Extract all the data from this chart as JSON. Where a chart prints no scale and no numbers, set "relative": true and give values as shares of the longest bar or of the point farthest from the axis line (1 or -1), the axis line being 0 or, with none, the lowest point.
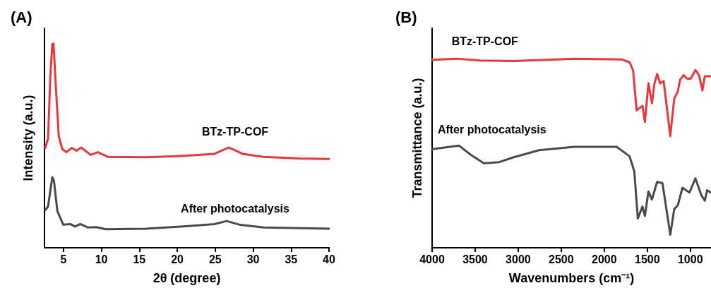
{
  "chart_data": [
    {
      "type": "line",
      "title": "(A)",
      "xlabel": "2θ (degree)",
      "ylabel": "Intensity (a.u.)",
      "relative": true,
      "xlim": [
        2.5,
        40
      ],
      "xticks": [
        5,
        10,
        15,
        20,
        25,
        30,
        35,
        40
      ],
      "grid": false,
      "legend": false,
      "marker": "none",
      "line_style": "solid",
      "tick_labels": "x",
      "series": [
        {
          "name": "BTz-TP-COF",
          "color": "#e8383d",
          "x": [
            2.6,
            2.97,
            3.28,
            3.53,
            3.69,
            4.0,
            4.38,
            4.85,
            5.38,
            6.1,
            6.72,
            7.34,
            8.58,
            9.52,
            10.92,
            15.9,
            20.5,
            24.9,
            26.8,
            28.6,
            31.4,
            36.1,
            40.0
          ],
          "values": [
            0.489,
            0.535,
            0.845,
            0.997,
            1.0,
            0.788,
            0.547,
            0.483,
            0.468,
            0.489,
            0.475,
            0.491,
            0.455,
            0.468,
            0.445,
            0.443,
            0.449,
            0.46,
            0.491,
            0.46,
            0.445,
            0.437,
            0.435
          ]
        },
        {
          "name": "After photocatalysis",
          "color": "#4a4a4a",
          "x": [
            2.6,
            2.97,
            3.53,
            3.75,
            4.2,
            4.98,
            5.91,
            6.53,
            7.22,
            8.24,
            9.33,
            10.57,
            15.86,
            20.5,
            24.9,
            26.5,
            28.3,
            31.4,
            40.0
          ],
          "values": [
            0.185,
            0.202,
            0.346,
            0.328,
            0.179,
            0.113,
            0.116,
            0.104,
            0.116,
            0.099,
            0.101,
            0.091,
            0.093,
            0.104,
            0.116,
            0.131,
            0.112,
            0.099,
            0.093
          ]
        }
      ]
    },
    {
      "type": "line",
      "title": "(B)",
      "xlabel": "Wavenumbers (cm⁻¹)",
      "ylabel": "Transmittance (a.u.)",
      "relative": true,
      "xlim": [
        4000,
        760
      ],
      "xticks": [
        4000,
        3500,
        3000,
        2500,
        2000,
        1500,
        1000
      ],
      "grid": false,
      "legend": false,
      "marker": "none",
      "line_style": "solid",
      "tick_labels": "x",
      "series": [
        {
          "name": "BTz-TP-COF",
          "color": "#e8383d",
          "x": [
            3995,
            3713,
            3440,
            3058,
            2348,
            1801,
            1706,
            1665,
            1624,
            1556,
            1528,
            1487,
            1446,
            1419,
            1386,
            1351,
            1310,
            1233,
            1187,
            1146,
            1119,
            1078,
            1037,
            996,
            941,
            900,
            859,
            832,
            764
          ],
          "values": [
            0.994,
            1.0,
            0.99,
            0.987,
            1.0,
            0.996,
            0.981,
            0.938,
            0.727,
            0.751,
            0.665,
            0.87,
            0.764,
            0.863,
            0.919,
            0.87,
            0.882,
            0.59,
            0.789,
            0.826,
            0.888,
            0.913,
            0.894,
            0.894,
            0.94,
            0.913,
            0.832,
            0.907,
            0.907
          ]
        },
        {
          "name": "After photocatalysis",
          "color": "#4a4a4a",
          "x": [
            3995,
            3686,
            3549,
            3399,
            3221,
            3058,
            2757,
            2348,
            1856,
            1706,
            1651,
            1610,
            1556,
            1528,
            1487,
            1446,
            1386,
            1324,
            1233,
            1187,
            1146,
            1092,
            1010,
            941,
            873,
            832,
            805,
            764
          ],
          "values": [
            0.522,
            0.54,
            0.491,
            0.447,
            0.453,
            0.478,
            0.516,
            0.534,
            0.534,
            0.484,
            0.404,
            0.155,
            0.218,
            0.168,
            0.298,
            0.255,
            0.348,
            0.342,
            0.069,
            0.205,
            0.224,
            0.317,
            0.292,
            0.367,
            0.279,
            0.249,
            0.304,
            0.292
          ]
        }
      ]
    }
  ]
}
